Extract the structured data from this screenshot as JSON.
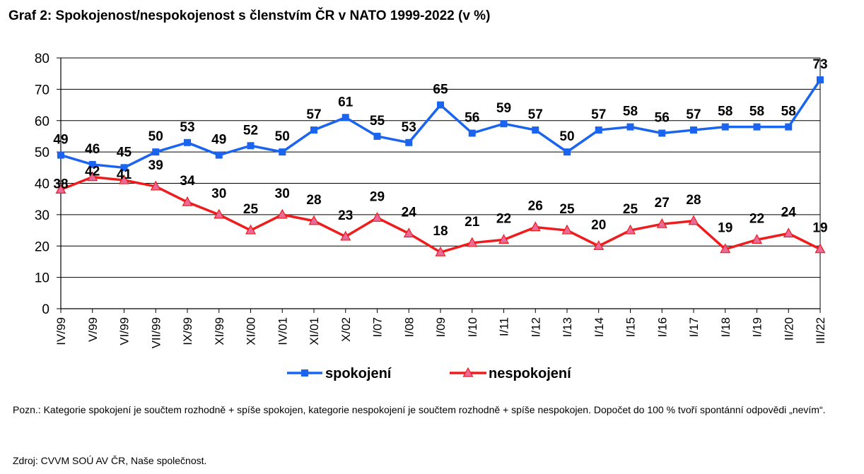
{
  "title": "Graf 2: Spokojenost/nespokojenost s členstvím ČR v NATO 1999-2022 (v %)",
  "note": "Pozn.: Kategorie spokojení je součtem rozhodně + spíše spokojen, kategorie nespokojení je součtem rozhodně + spíše nespokojen. Dopočet do 100 % tvoří spontánní odpovědi „nevím“.",
  "source": "Zdroj: CVVM SOÚ AV ČR, Naše společnost.",
  "chart_data": {
    "type": "line",
    "categories": [
      "IV/99",
      "V/99",
      "VI/99",
      "VII/99",
      "IX/99",
      "XI/99",
      "XI/00",
      "IV/01",
      "XI/01",
      "X/02",
      "I/07",
      "I/08",
      "I/09",
      "I/10",
      "I/11",
      "I/12",
      "I/13",
      "I/14",
      "I/15",
      "I/16",
      "I/17",
      "I/18",
      "I/19",
      "II/20",
      "III/22"
    ],
    "ylim": [
      0,
      80
    ],
    "yticks": [
      0,
      10,
      20,
      30,
      40,
      50,
      60,
      70,
      80
    ],
    "grid": true,
    "legend_position": "bottom",
    "series": [
      {
        "name": "spokojení",
        "color": "#1a64f0",
        "marker": "square",
        "values": [
          49,
          46,
          45,
          50,
          53,
          49,
          52,
          50,
          57,
          61,
          55,
          53,
          65,
          56,
          59,
          57,
          50,
          57,
          58,
          56,
          57,
          58,
          58,
          58,
          73
        ]
      },
      {
        "name": "nespokojení",
        "color": "#ee1c1c",
        "marker": "triangle",
        "values": [
          38,
          42,
          41,
          39,
          34,
          30,
          25,
          30,
          28,
          23,
          29,
          24,
          18,
          21,
          22,
          26,
          25,
          20,
          25,
          27,
          28,
          19,
          22,
          24,
          19
        ]
      }
    ]
  }
}
